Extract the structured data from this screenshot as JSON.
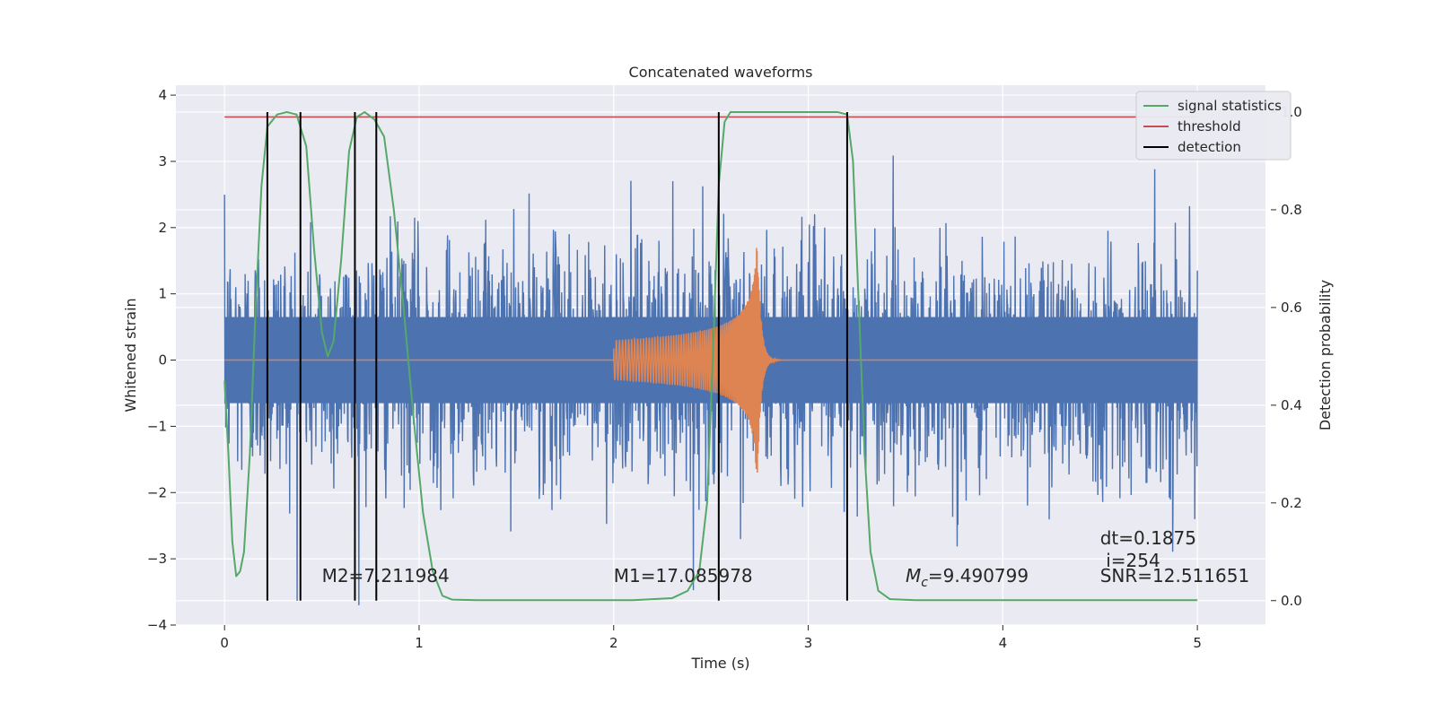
{
  "chart_data": {
    "type": "line",
    "title": "Concatenated waveforms",
    "xlabel": "Time (s)",
    "ylabel": "Whitened strain",
    "y2label": "Detection probability",
    "xlim": [
      -0.25,
      5.35
    ],
    "ylim": [
      -4.0,
      4.15
    ],
    "y2lim": [
      -0.05,
      1.055
    ],
    "x_ticks": [
      "0",
      "1",
      "2",
      "3",
      "4",
      "5"
    ],
    "y_ticks": [
      "−4",
      "−3",
      "−2",
      "−1",
      "0",
      "1",
      "2",
      "3",
      "4"
    ],
    "y2_ticks": [
      "0.0",
      "0.2",
      "0.4",
      "0.6",
      "0.8",
      "1.0"
    ],
    "grid": true,
    "legend_position": "top-right",
    "legend": [
      "signal statistics",
      "threshold",
      "detection"
    ],
    "colors": {
      "background": "#eaeaf2",
      "strain": "#4c72b0",
      "template": "#dd8452",
      "signal_statistics": "#55a868",
      "threshold": "#c44e52",
      "detection": "#000000"
    },
    "strain": {
      "t_start": 0.0,
      "t_end": 5.0,
      "core_amplitude": 0.65,
      "max_amplitude": 3.7
    },
    "template_waveform": {
      "t_start": 2.0,
      "t_merger": 2.74,
      "t_end": 3.0,
      "peak_amplitude": 1.7
    },
    "threshold": {
      "value": 0.99,
      "t_start": 0.0,
      "t_end": 5.0
    },
    "detections": [
      0.22,
      0.39,
      0.67,
      0.78,
      2.54,
      3.2
    ],
    "signal_statistics": [
      [
        0.0,
        0.45
      ],
      [
        0.02,
        0.3
      ],
      [
        0.04,
        0.12
      ],
      [
        0.06,
        0.05
      ],
      [
        0.08,
        0.06
      ],
      [
        0.1,
        0.1
      ],
      [
        0.13,
        0.3
      ],
      [
        0.16,
        0.6
      ],
      [
        0.19,
        0.85
      ],
      [
        0.22,
        0.97
      ],
      [
        0.27,
        0.995
      ],
      [
        0.32,
        1.0
      ],
      [
        0.37,
        0.995
      ],
      [
        0.42,
        0.93
      ],
      [
        0.46,
        0.72
      ],
      [
        0.5,
        0.55
      ],
      [
        0.53,
        0.5
      ],
      [
        0.56,
        0.53
      ],
      [
        0.6,
        0.7
      ],
      [
        0.64,
        0.92
      ],
      [
        0.68,
        0.99
      ],
      [
        0.72,
        1.0
      ],
      [
        0.77,
        0.985
      ],
      [
        0.82,
        0.95
      ],
      [
        0.87,
        0.8
      ],
      [
        0.92,
        0.6
      ],
      [
        0.97,
        0.38
      ],
      [
        1.02,
        0.18
      ],
      [
        1.07,
        0.06
      ],
      [
        1.12,
        0.01
      ],
      [
        1.17,
        0.002
      ],
      [
        1.3,
        0.001
      ],
      [
        2.1,
        0.001
      ],
      [
        2.3,
        0.005
      ],
      [
        2.38,
        0.02
      ],
      [
        2.44,
        0.06
      ],
      [
        2.48,
        0.2
      ],
      [
        2.51,
        0.5
      ],
      [
        2.54,
        0.85
      ],
      [
        2.57,
        0.98
      ],
      [
        2.6,
        1.0
      ],
      [
        3.15,
        1.0
      ],
      [
        3.2,
        0.995
      ],
      [
        3.23,
        0.9
      ],
      [
        3.26,
        0.6
      ],
      [
        3.29,
        0.3
      ],
      [
        3.32,
        0.1
      ],
      [
        3.36,
        0.02
      ],
      [
        3.42,
        0.003
      ],
      [
        3.55,
        0.001
      ],
      [
        5.0,
        0.001
      ]
    ],
    "annotations": [
      {
        "text": "M2=7.211984",
        "x": 0.5,
        "y": -3.35
      },
      {
        "text": "M1=17.085978",
        "x": 2.0,
        "y": -3.35
      },
      {
        "text": "=9.490799",
        "symbol": "M",
        "subscript": "c",
        "x": 3.5,
        "y": -3.35
      },
      {
        "text": "dt=0.1875",
        "x": 4.5,
        "y": -2.78
      },
      {
        "text": "i=254",
        "x": 4.53,
        "y": -3.12
      },
      {
        "text": "SNR=12.511651",
        "x": 4.5,
        "y": -3.35
      }
    ]
  }
}
